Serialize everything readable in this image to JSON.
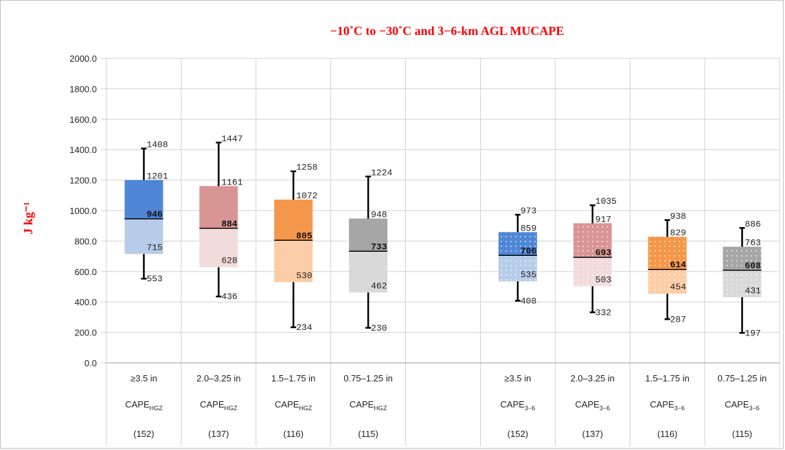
{
  "chart_data": {
    "type": "box",
    "title": "−10˚C to −30˚C and 3−6-km AGL MUCAPE",
    "ylabel": "J kg⁻¹",
    "ylim": [
      0,
      2000
    ],
    "yticks": [
      "0.0",
      "200.0",
      "400.0",
      "600.0",
      "800.0",
      "1000.0",
      "1200.0",
      "1400.0",
      "1600.0",
      "1800.0",
      "2000.0"
    ],
    "grid": true,
    "boxes": [
      {
        "size": "≥3.5 in",
        "variable": "CAPE",
        "subscript": "HGZ",
        "n": "(152)",
        "min": 553,
        "q1": 715,
        "median": 946,
        "q3": 1201,
        "max": 1408,
        "upper_color": "#4f87d6",
        "lower_color": "#b7cce8",
        "dotted": false
      },
      {
        "size": "2.0–3.25 in",
        "variable": "CAPE",
        "subscript": "HGZ",
        "n": "(137)",
        "min": 436,
        "q1": 628,
        "median": 884,
        "q3": 1161,
        "max": 1447,
        "upper_color": "#d99594",
        "lower_color": "#f2dbdb",
        "dotted": false
      },
      {
        "size": "1.5–1.75 in",
        "variable": "CAPE",
        "subscript": "HGZ",
        "n": "(116)",
        "min": 234,
        "q1": 530,
        "median": 805,
        "q3": 1072,
        "max": 1258,
        "upper_color": "#f5974a",
        "lower_color": "#fccda6",
        "dotted": false
      },
      {
        "size": "0.75–1.25 in",
        "variable": "CAPE",
        "subscript": "HGZ",
        "n": "(115)",
        "min": 230,
        "q1": 462,
        "median": 733,
        "q3": 948,
        "max": 1224,
        "upper_color": "#a6a6a6",
        "lower_color": "#d9d9d9",
        "dotted": false
      },
      {
        "size": "",
        "variable": "",
        "subscript": "",
        "n": "",
        "empty": true
      },
      {
        "size": "≥3.5 in",
        "variable": "CAPE",
        "subscript": "3−6",
        "n": "(152)",
        "min": 408,
        "q1": 535,
        "median": 706,
        "q3": 859,
        "max": 973,
        "upper_color": "#4f87d6",
        "lower_color": "#b7cce8",
        "dotted": true
      },
      {
        "size": "2.0–3.25 in",
        "variable": "CAPE",
        "subscript": "3−6",
        "n": "(137)",
        "min": 332,
        "q1": 503,
        "median": 693,
        "q3": 917,
        "max": 1035,
        "upper_color": "#d99594",
        "lower_color": "#f2dbdb",
        "dotted": true
      },
      {
        "size": "1.5–1.75 in",
        "variable": "CAPE",
        "subscript": "3−6",
        "n": "(116)",
        "min": 287,
        "q1": 454,
        "median": 614,
        "q3": 829,
        "max": 938,
        "upper_color": "#f5974a",
        "lower_color": "#fccda6",
        "dotted": true
      },
      {
        "size": "0.75–1.25 in",
        "variable": "CAPE",
        "subscript": "3−6",
        "n": "(115)",
        "min": 197,
        "q1": 431,
        "median": 608,
        "q3": 763,
        "max": 886,
        "upper_color": "#a6a6a6",
        "lower_color": "#d9d9d9",
        "dotted": true
      }
    ]
  }
}
